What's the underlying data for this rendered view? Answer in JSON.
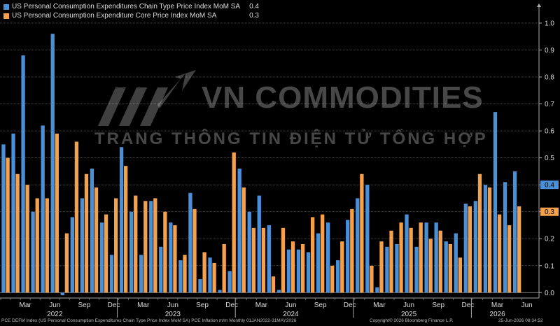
{
  "chart_data": {
    "type": "bar",
    "series": [
      {
        "name": "US Personal Consumption Expenditures Chain Type Price Index MoM SA",
        "last_value": "0.4",
        "color": "#4a90d9",
        "values": [
          0.55,
          0.59,
          0.88,
          0.3,
          0.62,
          0.96,
          -0.01,
          0.28,
          0.35,
          0.46,
          0.26,
          0.14,
          0.54,
          0.3,
          0.14,
          0.34,
          0.17,
          0.26,
          0.12,
          0.37,
          0.05,
          0.13,
          0.01,
          0.08,
          0.46,
          0.3,
          0.36,
          0.25,
          0.01,
          0.16,
          0.16,
          0.15,
          0.22,
          0.26,
          0.12,
          0.27,
          0.35,
          0.4,
          0.02,
          0.17,
          0.18,
          0.29,
          0.17,
          0.26,
          0.26,
          0.19,
          0.22,
          0.33,
          0.34,
          0.4,
          0.67,
          0.41,
          0.45
        ]
      },
      {
        "name": "US Personal Consumption Expenditure Core Price Index MoM SA",
        "last_value": "0.3",
        "color": "#f5a04a",
        "values": [
          0.5,
          0.44,
          0.4,
          0.35,
          0.35,
          0.59,
          0.22,
          0.56,
          0.44,
          0.39,
          0.29,
          0.35,
          0.47,
          0.36,
          0.34,
          0.35,
          0.3,
          0.25,
          0.14,
          0.31,
          0.15,
          0.11,
          0.18,
          0.52,
          0.39,
          0.24,
          0.24,
          0.06,
          0.24,
          0.19,
          0.18,
          0.28,
          0.29,
          0.1,
          0.19,
          0.31,
          0.44,
          0.1,
          0.19,
          0.23,
          0.26,
          0.24,
          0.26,
          0.2,
          0.23,
          0.18,
          0.13,
          0.32,
          0.44,
          0.39,
          0.29,
          0.25,
          0.32
        ]
      }
    ],
    "x_tick_labels": [
      "Mar",
      "Jun",
      "Sep",
      "Dec",
      "Mar",
      "Jun",
      "Sep",
      "Dec",
      "Mar",
      "Jun",
      "Sep",
      "Dec",
      "Mar",
      "Jun",
      "Sep",
      "Dec",
      "Mar",
      "Jun"
    ],
    "x_tick_index": [
      2,
      5,
      8,
      11,
      14,
      17,
      20,
      23,
      26,
      29,
      32,
      35,
      38,
      41,
      44,
      47,
      50,
      53
    ],
    "year_labels": [
      "2022",
      "2023",
      "2024",
      "2025",
      "2026"
    ],
    "year_label_index": [
      5,
      17,
      29,
      41,
      50
    ],
    "y_ticks": [
      "0.0",
      "0.1",
      "0.2",
      "0.3",
      "0.4",
      "0.5",
      "0.6",
      "0.7",
      "0.8",
      "0.9",
      "1.0"
    ],
    "ylim": [
      -0.02,
      1.07
    ],
    "grid": true,
    "legend_position": "top-left",
    "right_axis_markers": [
      {
        "label": "0.4",
        "value": 0.4,
        "color": "#4a90d9"
      },
      {
        "label": "0.3",
        "value": 0.3,
        "color": "#f5a04a"
      }
    ]
  },
  "watermark": {
    "title": "VN COMMODITIES",
    "subtitle": "TRANG THÔNG TIN ĐIỆN TỬ TỔNG HỢP"
  },
  "footer": {
    "left": "PCE DEFM Index (US Personal Consumption Expenditures Chain Type Price Index MoM SA) PCE Inflation m/m Monthly 01JAN2022-31MAY2026",
    "copyright": "Copyright© 2026 Bloomberg Finance L.P.",
    "timestamp": "25-Jun-2026 08:34:52"
  }
}
